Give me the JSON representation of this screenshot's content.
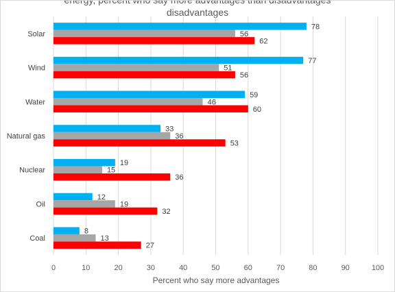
{
  "chart_data": {
    "type": "bar",
    "orientation": "horizontal",
    "title_lines": [
      "energy, percent who say more advantages than disadvantages",
      "disadvantages"
    ],
    "categories": [
      "Solar",
      "Wind",
      "Water",
      "Natural gas",
      "Nuclear",
      "Oil",
      "Coal"
    ],
    "series": [
      {
        "values": [
          78,
          77,
          59,
          33,
          19,
          12,
          8
        ],
        "color": "#00b0f0"
      },
      {
        "values": [
          56,
          51,
          46,
          36,
          15,
          19,
          13
        ],
        "color": "#a6a6a6"
      },
      {
        "values": [
          62,
          56,
          60,
          53,
          36,
          32,
          27
        ],
        "color": "#ff0000"
      }
    ],
    "xlabel": "Percent who say more advantages",
    "xlim": [
      0,
      100
    ],
    "xticks": [
      0,
      10,
      20,
      30,
      40,
      50,
      60,
      70,
      80,
      90,
      100
    ],
    "grid": true,
    "data_labels": true
  }
}
